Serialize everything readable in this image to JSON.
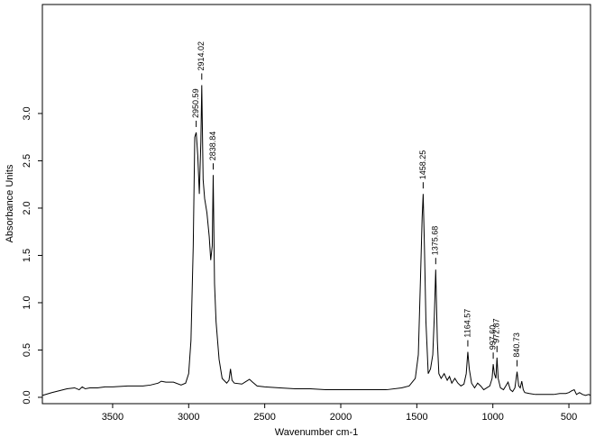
{
  "chart_data": {
    "type": "line",
    "xlabel": "Wavenumber cm-1",
    "ylabel": "Absorbance Units",
    "xlim": [
      3962,
      358
    ],
    "ylim": [
      -0.067,
      4.152
    ],
    "xticks": [
      3500,
      3000,
      2500,
      2000,
      1500,
      1000,
      500
    ],
    "yticks": [
      {
        "value": 0,
        "label": "0.0"
      },
      0.5,
      {
        "value": 1,
        "label": "1.0"
      },
      1.5,
      {
        "value": 2,
        "label": "2.0"
      },
      2.5,
      {
        "value": 3,
        "label": "3.0"
      }
    ],
    "series": [
      {
        "color": "#000000",
        "x": [
          3962,
          3900,
          3850,
          3800,
          3750,
          3720,
          3700,
          3680,
          3650,
          3600,
          3550,
          3500,
          3400,
          3300,
          3250,
          3200,
          3180,
          3150,
          3100,
          3050,
          3020,
          3000,
          2985,
          2970,
          2960,
          2950.59,
          2940,
          2930,
          2920,
          2914.02,
          2905,
          2895,
          2880,
          2865,
          2855,
          2845,
          2838.84,
          2830,
          2820,
          2800,
          2780,
          2750,
          2735,
          2725,
          2715,
          2700,
          2650,
          2620,
          2600,
          2580,
          2550,
          2500,
          2400,
          2300,
          2200,
          2100,
          2000,
          1900,
          1800,
          1700,
          1600,
          1550,
          1510,
          1490,
          1475,
          1465,
          1458.25,
          1450,
          1440,
          1425,
          1410,
          1395,
          1385,
          1375.68,
          1365,
          1355,
          1340,
          1320,
          1300,
          1285,
          1270,
          1250,
          1230,
          1210,
          1190,
          1175,
          1164.57,
          1155,
          1140,
          1120,
          1100,
          1080,
          1060,
          1040,
          1020,
          1005,
          997.6,
          990,
          980,
          972.87,
          965,
          950,
          930,
          915,
          900,
          885,
          870,
          855,
          840.73,
          830,
          820,
          810,
          800,
          790,
          760,
          720,
          680,
          640,
          600,
          560,
          520,
          500,
          480,
          465,
          450,
          430,
          410,
          390,
          370,
          358
        ],
        "values": [
          0.02,
          0.05,
          0.07,
          0.09,
          0.1,
          0.08,
          0.11,
          0.09,
          0.1,
          0.1,
          0.11,
          0.11,
          0.12,
          0.12,
          0.13,
          0.15,
          0.17,
          0.16,
          0.16,
          0.13,
          0.15,
          0.25,
          0.6,
          1.6,
          2.75,
          2.8,
          2.55,
          2.15,
          2.7,
          3.3,
          2.3,
          2.1,
          1.95,
          1.7,
          1.45,
          1.6,
          2.35,
          1.2,
          0.8,
          0.4,
          0.2,
          0.15,
          0.18,
          0.3,
          0.18,
          0.15,
          0.14,
          0.17,
          0.19,
          0.16,
          0.12,
          0.11,
          0.1,
          0.09,
          0.09,
          0.08,
          0.08,
          0.08,
          0.08,
          0.08,
          0.1,
          0.12,
          0.2,
          0.45,
          1.3,
          1.9,
          2.15,
          1.6,
          0.8,
          0.25,
          0.3,
          0.45,
          0.85,
          1.35,
          0.6,
          0.25,
          0.2,
          0.25,
          0.18,
          0.22,
          0.15,
          0.2,
          0.15,
          0.12,
          0.14,
          0.25,
          0.48,
          0.3,
          0.15,
          0.1,
          0.15,
          0.12,
          0.08,
          0.1,
          0.12,
          0.2,
          0.35,
          0.25,
          0.2,
          0.42,
          0.2,
          0.1,
          0.08,
          0.12,
          0.16,
          0.08,
          0.06,
          0.1,
          0.27,
          0.12,
          0.1,
          0.17,
          0.08,
          0.05,
          0.04,
          0.03,
          0.03,
          0.03,
          0.03,
          0.04,
          0.04,
          0.05,
          0.07,
          0.08,
          0.03,
          0.05,
          0.03,
          0.02,
          0.03,
          0.02
        ]
      }
    ],
    "annotations": [
      "2950.59",
      "2914.02",
      "2838.84",
      "1458.25",
      "1375.68",
      "1164.57",
      "997.60",
      "972.87",
      "840.73"
    ]
  }
}
